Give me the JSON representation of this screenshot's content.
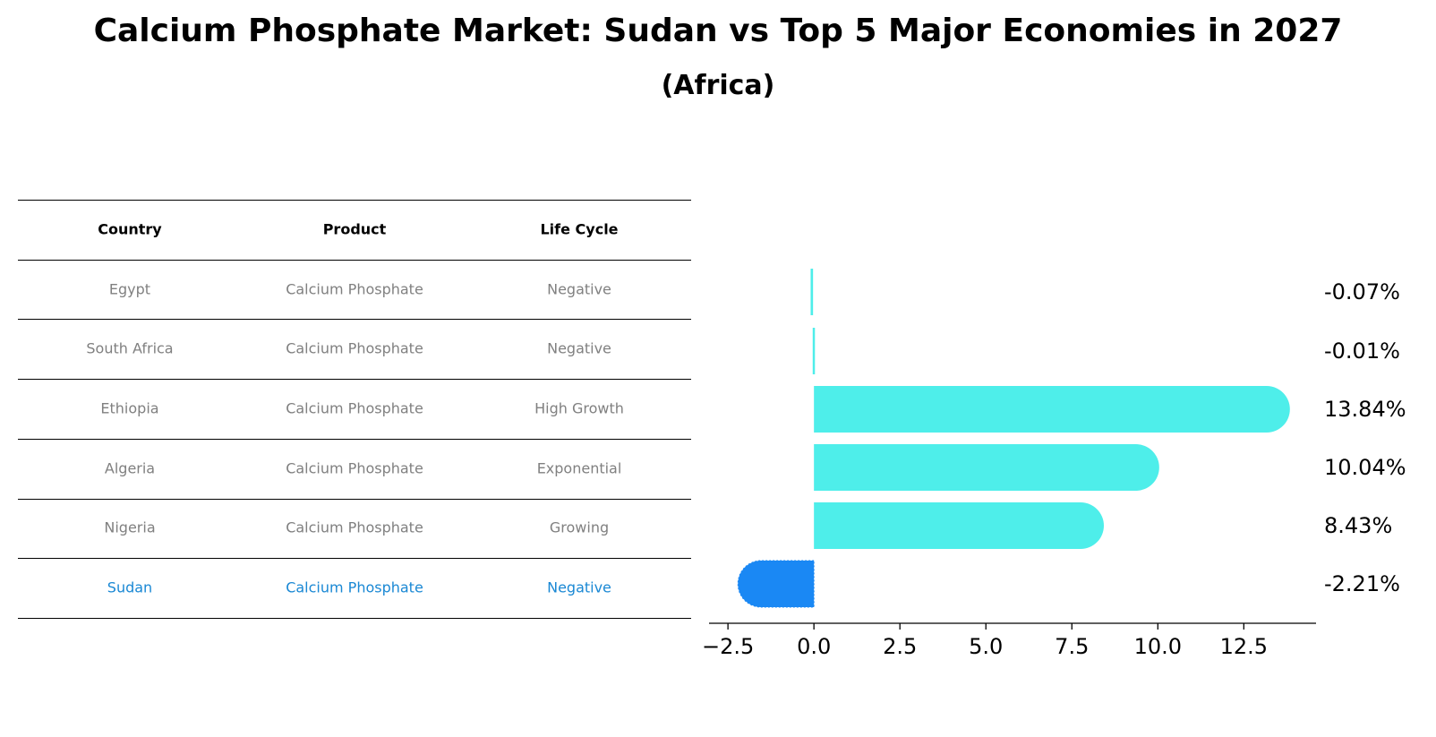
{
  "title": "Calcium Phosphate Market: Sudan vs Top 5 Major Economies in 2027",
  "subtitle": "(Africa)",
  "table": {
    "columns": [
      "Country",
      "Product",
      "Life Cycle"
    ],
    "rows": [
      {
        "country": "Egypt",
        "product": "Calcium Phosphate",
        "life_cycle": "Negative"
      },
      {
        "country": "South Africa",
        "product": "Calcium Phosphate",
        "life_cycle": "Negative"
      },
      {
        "country": "Ethiopia",
        "product": "Calcium Phosphate",
        "life_cycle": "High Growth"
      },
      {
        "country": "Algeria",
        "product": "Calcium Phosphate",
        "life_cycle": "Exponential"
      },
      {
        "country": "Nigeria",
        "product": "Calcium Phosphate",
        "life_cycle": "Growing"
      },
      {
        "country": "Sudan",
        "product": "Calcium Phosphate",
        "life_cycle": "Negative"
      }
    ],
    "highlight_row": "Sudan"
  },
  "chart_data": {
    "type": "bar",
    "orientation": "horizontal",
    "categories": [
      "Egypt",
      "South Africa",
      "Ethiopia",
      "Algeria",
      "Nigeria",
      "Sudan"
    ],
    "values": [
      -0.07,
      -0.01,
      13.84,
      10.04,
      8.43,
      -2.21
    ],
    "value_labels": [
      "-0.07%",
      "-0.01%",
      "13.84%",
      "10.04%",
      "8.43%",
      "-2.21%"
    ],
    "xlim": [
      -3.05,
      14.6
    ],
    "xticks": [
      -2.5,
      0.0,
      2.5,
      5.0,
      7.5,
      10.0,
      12.5
    ],
    "xtick_labels": [
      "−2.5",
      "0.0",
      "2.5",
      "5.0",
      "7.5",
      "10.0",
      "12.5"
    ],
    "colors": {
      "default": "#4eeeea",
      "highlight": "#1a88f4",
      "highlight_category": "Sudan"
    },
    "grid": false
  }
}
